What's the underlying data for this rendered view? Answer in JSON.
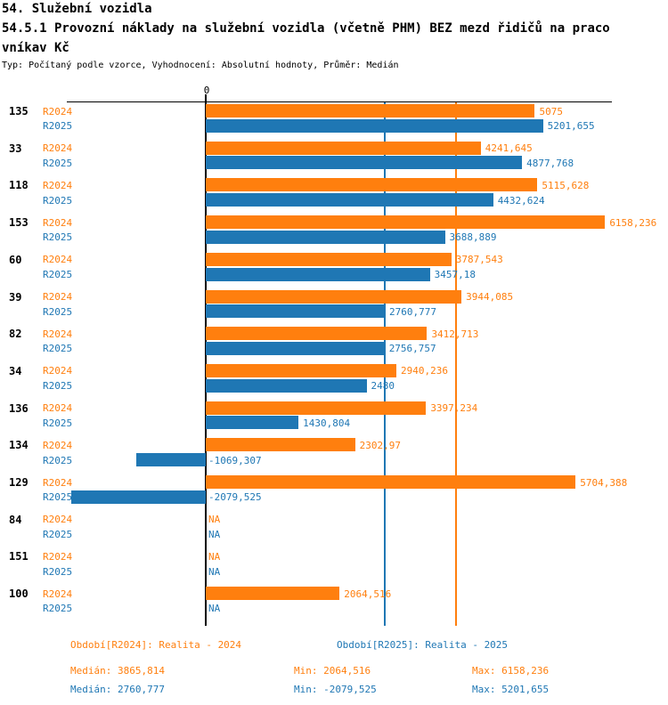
{
  "page": {
    "title_line1": "54. Služební vozidla",
    "title_line2": "54.5.1 Provozní náklady na služební vozidla (včetně PHM) BEZ mezd řidičů na praco",
    "title_line3": "vníkav Kč",
    "subtitle": "Typ: Počítaný podle vzorce, Vyhodnocení: Absolutní hodnoty, Průměr: Medián"
  },
  "colors": {
    "r2024": "#ff7f0e",
    "r2025": "#1f77b4",
    "axis": "#000000"
  },
  "chart_data": {
    "type": "bar",
    "orientation": "horizontal",
    "zero_label": "0",
    "xlim": [
      -2200,
      6600
    ],
    "grid": false,
    "categories": [
      "135",
      "33",
      "118",
      "153",
      "60",
      "39",
      "82",
      "34",
      "136",
      "134",
      "129",
      "84",
      "151",
      "100"
    ],
    "series": [
      {
        "name": "R2024",
        "color": "#ff7f0e",
        "values": [
          5075,
          4241.645,
          5115.628,
          6158.236,
          3787.543,
          3944.085,
          3412.713,
          2940.236,
          3397.234,
          2302.97,
          5704.388,
          null,
          null,
          2064.516
        ],
        "labels": [
          "5075",
          "4241,645",
          "5115,628",
          "6158,236",
          "3787,543",
          "3944,085",
          "3412,713",
          "2940,236",
          "3397,234",
          "2302,97",
          "5704,388",
          "NA",
          "NA",
          "2064,516"
        ]
      },
      {
        "name": "R2025",
        "color": "#1f77b4",
        "values": [
          5201.655,
          4877.768,
          4432.624,
          3688.889,
          3457.18,
          2760.777,
          2756.757,
          2480,
          1430.804,
          -1069.307,
          -2079.525,
          null,
          null,
          null
        ],
        "labels": [
          "5201,655",
          "4877,768",
          "4432,624",
          "3688,889",
          "3457,18",
          "2760,777",
          "2756,757",
          "2480",
          "1430,804",
          "-1069,307",
          "-2079,525",
          "NA",
          "NA",
          "NA"
        ]
      }
    ],
    "median_lines": [
      {
        "series": "R2024",
        "value": 3865.814,
        "color": "#ff7f0e"
      },
      {
        "series": "R2025",
        "value": 2760.777,
        "color": "#1f77b4"
      }
    ]
  },
  "legend": {
    "r2024": "Období[R2024]: Realita - 2024",
    "r2025": "Období[R2025]: Realita - 2025"
  },
  "stats": {
    "r2024": {
      "median": "Medián: 3865,814",
      "min": "Min: 2064,516",
      "max": "Max: 6158,236"
    },
    "r2025": {
      "median": "Medián: 2760,777",
      "min": "Min: -2079,525",
      "max": "Max: 5201,655"
    }
  }
}
